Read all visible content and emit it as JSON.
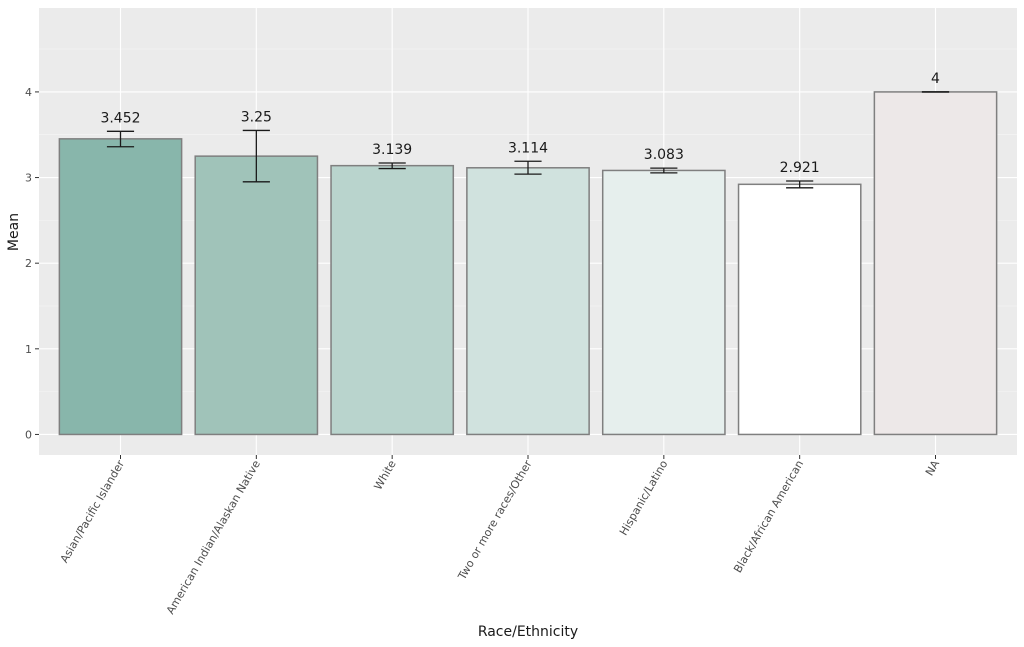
{
  "chart_data": {
    "type": "bar",
    "title": "",
    "xlabel": "Race/Ethnicity",
    "ylabel": "Mean",
    "categories": [
      "Asian/Pacific Islander",
      "American Indian/Alaskan Native",
      "White",
      "Two or more races/Other",
      "Hispanic/Latino",
      "Black/African American",
      "NA"
    ],
    "values": [
      3.452,
      3.25,
      3.139,
      3.114,
      3.083,
      2.921,
      4
    ],
    "value_labels": [
      "3.452",
      "3.25",
      "3.139",
      "3.114",
      "3.083",
      "2.921",
      "4"
    ],
    "error_low": [
      3.36,
      2.95,
      3.105,
      3.04,
      3.055,
      2.88,
      4.0
    ],
    "error_high": [
      3.54,
      3.55,
      3.17,
      3.19,
      3.11,
      2.96,
      4.0
    ],
    "bar_colors": [
      "#88b6ab",
      "#a0c3b9",
      "#b9d4cd",
      "#d0e2de",
      "#e6efed",
      "#ffffff",
      "#ede8e8"
    ],
    "yticks": [
      0,
      1,
      2,
      3,
      4
    ],
    "ytick_labels": [
      "0",
      "1",
      "2",
      "3",
      "4"
    ],
    "ylim": [
      -0.24,
      4.98
    ],
    "grid": true,
    "legend": "none",
    "colors": {
      "panel_background": "#ebebeb",
      "grid_major": "#ffffff",
      "grid_minor": "#f5f5f5",
      "bar_outline": "#7f7f7f",
      "error_bar": "#1a1a1a",
      "text": "#1a1a1a",
      "tick_text": "#4d4d4d"
    }
  }
}
